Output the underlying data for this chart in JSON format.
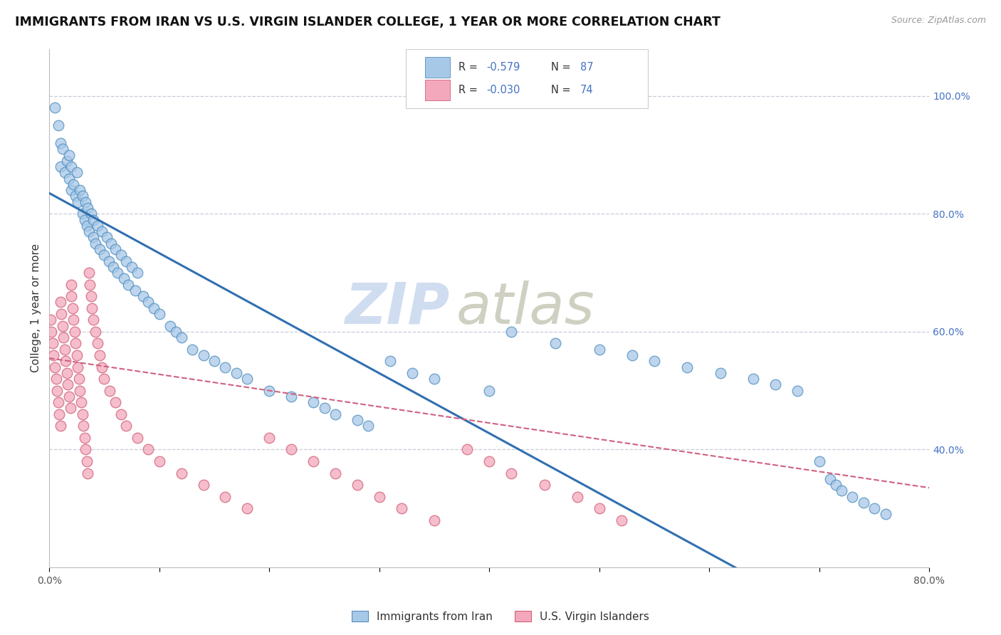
{
  "title": "IMMIGRANTS FROM IRAN VS U.S. VIRGIN ISLANDER COLLEGE, 1 YEAR OR MORE CORRELATION CHART",
  "source": "Source: ZipAtlas.com",
  "ylabel": "College, 1 year or more",
  "legend_r1": "R = -0.579",
  "legend_n1": "N = 87",
  "legend_r2": "R = -0.030",
  "legend_n2": "N = 74",
  "legend_label1": "Immigrants from Iran",
  "legend_label2": "U.S. Virgin Islanders",
  "blue_marker_color": "#a8c8e8",
  "blue_edge_color": "#4f8fbf",
  "pink_marker_color": "#f4a8bc",
  "pink_edge_color": "#d0607a",
  "blue_line_color": "#3070b0",
  "pink_line_color": "#d06080",
  "grid_color": "#c8ccd8",
  "right_axis_color": "#4472c4",
  "watermark_zip_color": "#c8d8ee",
  "watermark_atlas_color": "#c8c8b8",
  "xlim": [
    0.0,
    0.8
  ],
  "ylim": [
    0.2,
    1.08
  ],
  "blue_scatter_x": [
    0.005,
    0.008,
    0.01,
    0.01,
    0.012,
    0.014,
    0.016,
    0.018,
    0.018,
    0.02,
    0.02,
    0.022,
    0.024,
    0.025,
    0.026,
    0.028,
    0.03,
    0.03,
    0.032,
    0.033,
    0.034,
    0.035,
    0.036,
    0.038,
    0.04,
    0.04,
    0.042,
    0.044,
    0.046,
    0.048,
    0.05,
    0.052,
    0.054,
    0.056,
    0.058,
    0.06,
    0.062,
    0.065,
    0.068,
    0.07,
    0.072,
    0.075,
    0.078,
    0.08,
    0.085,
    0.09,
    0.095,
    0.1,
    0.11,
    0.115,
    0.12,
    0.13,
    0.14,
    0.15,
    0.16,
    0.17,
    0.18,
    0.2,
    0.22,
    0.24,
    0.25,
    0.26,
    0.28,
    0.29,
    0.31,
    0.33,
    0.35,
    0.4,
    0.42,
    0.46,
    0.5,
    0.53,
    0.55,
    0.58,
    0.61,
    0.64,
    0.66,
    0.68,
    0.7,
    0.71,
    0.715,
    0.72,
    0.73,
    0.74,
    0.75,
    0.76
  ],
  "blue_scatter_y": [
    0.98,
    0.95,
    0.92,
    0.88,
    0.91,
    0.87,
    0.89,
    0.86,
    0.9,
    0.84,
    0.88,
    0.85,
    0.83,
    0.87,
    0.82,
    0.84,
    0.8,
    0.83,
    0.79,
    0.82,
    0.78,
    0.81,
    0.77,
    0.8,
    0.76,
    0.79,
    0.75,
    0.78,
    0.74,
    0.77,
    0.73,
    0.76,
    0.72,
    0.75,
    0.71,
    0.74,
    0.7,
    0.73,
    0.69,
    0.72,
    0.68,
    0.71,
    0.67,
    0.7,
    0.66,
    0.65,
    0.64,
    0.63,
    0.61,
    0.6,
    0.59,
    0.57,
    0.56,
    0.55,
    0.54,
    0.53,
    0.52,
    0.5,
    0.49,
    0.48,
    0.47,
    0.46,
    0.45,
    0.44,
    0.55,
    0.53,
    0.52,
    0.5,
    0.6,
    0.58,
    0.57,
    0.56,
    0.55,
    0.54,
    0.53,
    0.52,
    0.51,
    0.5,
    0.38,
    0.35,
    0.34,
    0.33,
    0.32,
    0.31,
    0.3,
    0.29
  ],
  "pink_scatter_x": [
    0.001,
    0.002,
    0.003,
    0.004,
    0.005,
    0.006,
    0.007,
    0.008,
    0.009,
    0.01,
    0.01,
    0.011,
    0.012,
    0.013,
    0.014,
    0.015,
    0.016,
    0.017,
    0.018,
    0.019,
    0.02,
    0.02,
    0.021,
    0.022,
    0.023,
    0.024,
    0.025,
    0.026,
    0.027,
    0.028,
    0.029,
    0.03,
    0.031,
    0.032,
    0.033,
    0.034,
    0.035,
    0.036,
    0.037,
    0.038,
    0.039,
    0.04,
    0.042,
    0.044,
    0.046,
    0.048,
    0.05,
    0.055,
    0.06,
    0.065,
    0.07,
    0.08,
    0.09,
    0.1,
    0.12,
    0.14,
    0.16,
    0.18,
    0.2,
    0.22,
    0.24,
    0.26,
    0.28,
    0.3,
    0.32,
    0.35,
    0.38,
    0.4,
    0.42,
    0.45,
    0.48,
    0.5,
    0.52
  ],
  "pink_scatter_y": [
    0.62,
    0.6,
    0.58,
    0.56,
    0.54,
    0.52,
    0.5,
    0.48,
    0.46,
    0.44,
    0.65,
    0.63,
    0.61,
    0.59,
    0.57,
    0.55,
    0.53,
    0.51,
    0.49,
    0.47,
    0.68,
    0.66,
    0.64,
    0.62,
    0.6,
    0.58,
    0.56,
    0.54,
    0.52,
    0.5,
    0.48,
    0.46,
    0.44,
    0.42,
    0.4,
    0.38,
    0.36,
    0.7,
    0.68,
    0.66,
    0.64,
    0.62,
    0.6,
    0.58,
    0.56,
    0.54,
    0.52,
    0.5,
    0.48,
    0.46,
    0.44,
    0.42,
    0.4,
    0.38,
    0.36,
    0.34,
    0.32,
    0.3,
    0.42,
    0.4,
    0.38,
    0.36,
    0.34,
    0.32,
    0.3,
    0.28,
    0.4,
    0.38,
    0.36,
    0.34,
    0.32,
    0.3,
    0.28
  ],
  "blue_line_x": [
    0.0,
    0.8
  ],
  "blue_line_y": [
    0.835,
    0.02
  ],
  "pink_line_x": [
    0.0,
    0.8
  ],
  "pink_line_y": [
    0.555,
    0.335
  ]
}
